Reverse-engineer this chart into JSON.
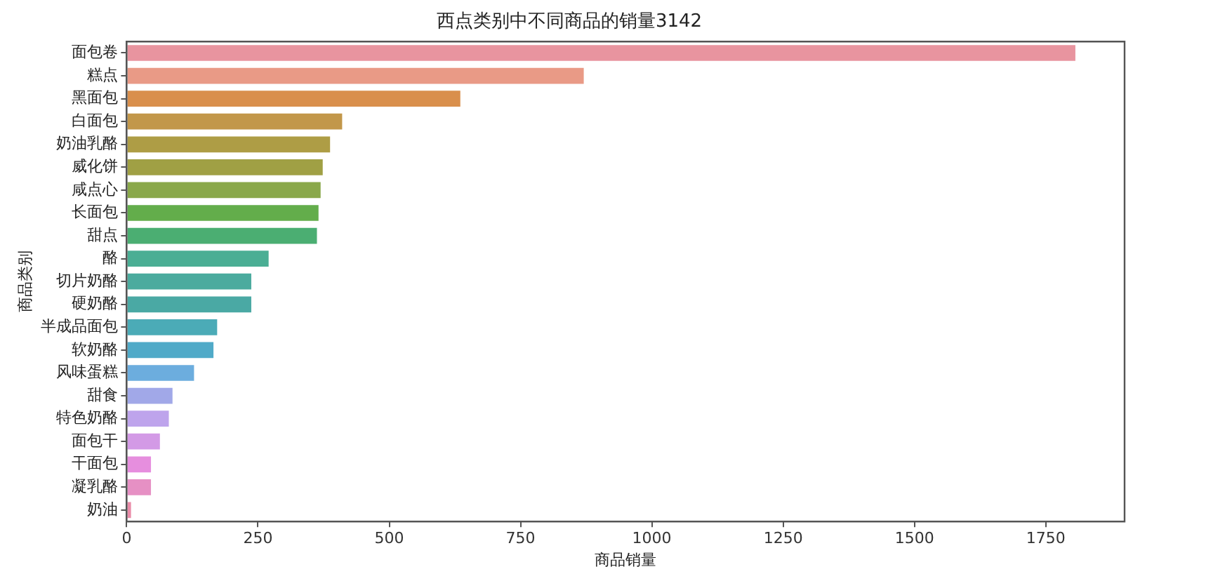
{
  "chart_data": {
    "type": "bar",
    "orientation": "horizontal",
    "title": "西点类别中不同商品的销量3142",
    "xlabel": "商品销量",
    "ylabel": "商品类别",
    "categories": [
      "面包卷",
      "糕点",
      "黑面包",
      "白面包",
      "奶油乳酪",
      "威化饼",
      "咸点心",
      "长面包",
      "甜点",
      "酪",
      "切片奶酪",
      "硬奶酪",
      "半成品面包",
      "软奶酪",
      "风味蛋糕",
      "甜食",
      "特色奶酪",
      "面包干",
      "干面包",
      "凝乳酪",
      "奶油"
    ],
    "values": [
      1809,
      873,
      638,
      413,
      390,
      376,
      372,
      368,
      365,
      273,
      240,
      240,
      175,
      168,
      131,
      90,
      83,
      66,
      49,
      49,
      11
    ],
    "colors": [
      "#e8949f",
      "#e99a86",
      "#d98f4c",
      "#c2974a",
      "#ae9d45",
      "#a0a044",
      "#8aa84a",
      "#63ad4b",
      "#4bae72",
      "#4aae94",
      "#4bab9e",
      "#4aa9a4",
      "#4babb7",
      "#50aac8",
      "#6cadde",
      "#a1a8e8",
      "#bea4ec",
      "#d39ae6",
      "#e68ede",
      "#e690c4",
      "#e98ba8"
    ],
    "xlim": [
      0,
      1900
    ],
    "xticks": [
      0,
      250,
      500,
      750,
      1000,
      1250,
      1500,
      1750
    ]
  }
}
